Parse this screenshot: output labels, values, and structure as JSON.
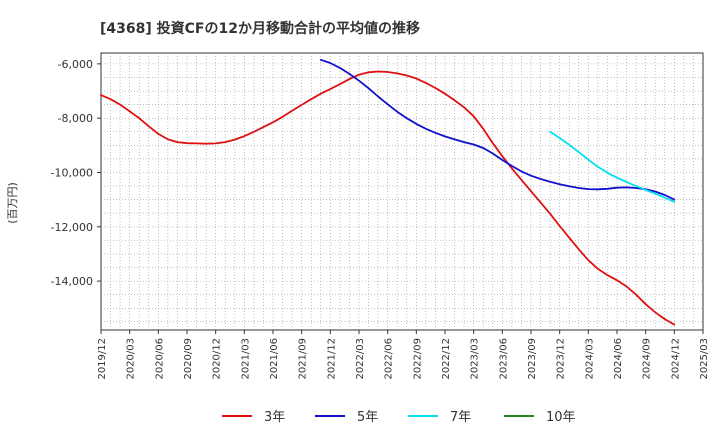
{
  "chart_data": {
    "type": "line",
    "title": "[4368]  投資CFの12か月移動合計の平均値の推移",
    "ylabel": "(百万円)",
    "xlabel": "",
    "ylim": [
      -15800,
      -5600
    ],
    "yticks": [
      -6000,
      -8000,
      -10000,
      -12000,
      -14000
    ],
    "ytick_labels": [
      "-6,000",
      "-8,000",
      "-10,000",
      "-12,000",
      "-14,000"
    ],
    "xlim": [
      "2019/12",
      "2025/03"
    ],
    "xtick_labels": [
      "2019/12",
      "2020/03",
      "2020/06",
      "2020/09",
      "2020/12",
      "2021/03",
      "2021/06",
      "2021/09",
      "2021/12",
      "2022/03",
      "2022/06",
      "2022/09",
      "2022/12",
      "2023/03",
      "2023/06",
      "2023/09",
      "2023/12",
      "2024/03",
      "2024/06",
      "2024/09",
      "2024/12",
      "2025/03"
    ],
    "grid": true,
    "legend_position": "bottom",
    "series": [
      {
        "name": "3年",
        "color": "#dd1111",
        "points": [
          [
            "2019/12",
            -7150
          ],
          [
            "2020/01",
            -7300
          ],
          [
            "2020/02",
            -7500
          ],
          [
            "2020/03",
            -7750
          ],
          [
            "2020/04",
            -8000
          ],
          [
            "2020/05",
            -8300
          ],
          [
            "2020/06",
            -8580
          ],
          [
            "2020/07",
            -8780
          ],
          [
            "2020/08",
            -8880
          ],
          [
            "2020/09",
            -8920
          ],
          [
            "2020/10",
            -8930
          ],
          [
            "2020/11",
            -8940
          ],
          [
            "2020/12",
            -8930
          ],
          [
            "2021/01",
            -8880
          ],
          [
            "2021/02",
            -8790
          ],
          [
            "2021/03",
            -8660
          ],
          [
            "2021/04",
            -8500
          ],
          [
            "2021/05",
            -8330
          ],
          [
            "2021/06",
            -8150
          ],
          [
            "2021/07",
            -7950
          ],
          [
            "2021/08",
            -7730
          ],
          [
            "2021/09",
            -7510
          ],
          [
            "2021/10",
            -7300
          ],
          [
            "2021/11",
            -7100
          ],
          [
            "2021/12",
            -6930
          ],
          [
            "2022/01",
            -6750
          ],
          [
            "2022/02",
            -6560
          ],
          [
            "2022/03",
            -6400
          ],
          [
            "2022/04",
            -6310
          ],
          [
            "2022/05",
            -6280
          ],
          [
            "2022/06",
            -6300
          ],
          [
            "2022/07",
            -6350
          ],
          [
            "2022/08",
            -6430
          ],
          [
            "2022/09",
            -6540
          ],
          [
            "2022/10",
            -6700
          ],
          [
            "2022/11",
            -6890
          ],
          [
            "2022/12",
            -7100
          ],
          [
            "2023/01",
            -7340
          ],
          [
            "2023/02",
            -7600
          ],
          [
            "2023/03",
            -7930
          ],
          [
            "2023/04",
            -8390
          ],
          [
            "2023/05",
            -8920
          ],
          [
            "2023/06",
            -9400
          ],
          [
            "2023/07",
            -9850
          ],
          [
            "2023/08",
            -10270
          ],
          [
            "2023/09",
            -10690
          ],
          [
            "2023/10",
            -11100
          ],
          [
            "2023/11",
            -11520
          ],
          [
            "2023/12",
            -11970
          ],
          [
            "2024/01",
            -12400
          ],
          [
            "2024/02",
            -12830
          ],
          [
            "2024/03",
            -13230
          ],
          [
            "2024/04",
            -13550
          ],
          [
            "2024/05",
            -13780
          ],
          [
            "2024/06",
            -13970
          ],
          [
            "2024/07",
            -14200
          ],
          [
            "2024/08",
            -14500
          ],
          [
            "2024/09",
            -14850
          ],
          [
            "2024/10",
            -15150
          ],
          [
            "2024/11",
            -15400
          ],
          [
            "2024/12",
            -15600
          ]
        ]
      },
      {
        "name": "5年",
        "color": "#1111cc",
        "points": [
          [
            "2021/11",
            -5850
          ],
          [
            "2021/12",
            -5970
          ],
          [
            "2022/01",
            -6150
          ],
          [
            "2022/02",
            -6370
          ],
          [
            "2022/03",
            -6620
          ],
          [
            "2022/04",
            -6900
          ],
          [
            "2022/05",
            -7200
          ],
          [
            "2022/06",
            -7490
          ],
          [
            "2022/07",
            -7760
          ],
          [
            "2022/08",
            -8000
          ],
          [
            "2022/09",
            -8210
          ],
          [
            "2022/10",
            -8390
          ],
          [
            "2022/11",
            -8540
          ],
          [
            "2022/12",
            -8670
          ],
          [
            "2023/01",
            -8780
          ],
          [
            "2023/02",
            -8880
          ],
          [
            "2023/03",
            -8970
          ],
          [
            "2023/04",
            -9100
          ],
          [
            "2023/05",
            -9300
          ],
          [
            "2023/06",
            -9540
          ],
          [
            "2023/07",
            -9760
          ],
          [
            "2023/08",
            -9960
          ],
          [
            "2023/09",
            -10120
          ],
          [
            "2023/10",
            -10240
          ],
          [
            "2023/11",
            -10340
          ],
          [
            "2023/12",
            -10430
          ],
          [
            "2024/01",
            -10510
          ],
          [
            "2024/02",
            -10570
          ],
          [
            "2024/03",
            -10610
          ],
          [
            "2024/04",
            -10620
          ],
          [
            "2024/05",
            -10600
          ],
          [
            "2024/06",
            -10560
          ],
          [
            "2024/07",
            -10550
          ],
          [
            "2024/08",
            -10570
          ],
          [
            "2024/09",
            -10620
          ],
          [
            "2024/10",
            -10700
          ],
          [
            "2024/11",
            -10830
          ],
          [
            "2024/12",
            -11000
          ]
        ]
      },
      {
        "name": "7年",
        "color": "#00e0f0",
        "points": [
          [
            "2023/11",
            -8500
          ],
          [
            "2023/12",
            -8730
          ],
          [
            "2024/01",
            -8980
          ],
          [
            "2024/02",
            -9250
          ],
          [
            "2024/03",
            -9530
          ],
          [
            "2024/04",
            -9790
          ],
          [
            "2024/05",
            -10010
          ],
          [
            "2024/06",
            -10190
          ],
          [
            "2024/07",
            -10350
          ],
          [
            "2024/08",
            -10500
          ],
          [
            "2024/09",
            -10640
          ],
          [
            "2024/10",
            -10780
          ],
          [
            "2024/11",
            -10930
          ],
          [
            "2024/12",
            -11080
          ]
        ]
      },
      {
        "name": "10年",
        "color": "#228822",
        "points": []
      }
    ]
  }
}
